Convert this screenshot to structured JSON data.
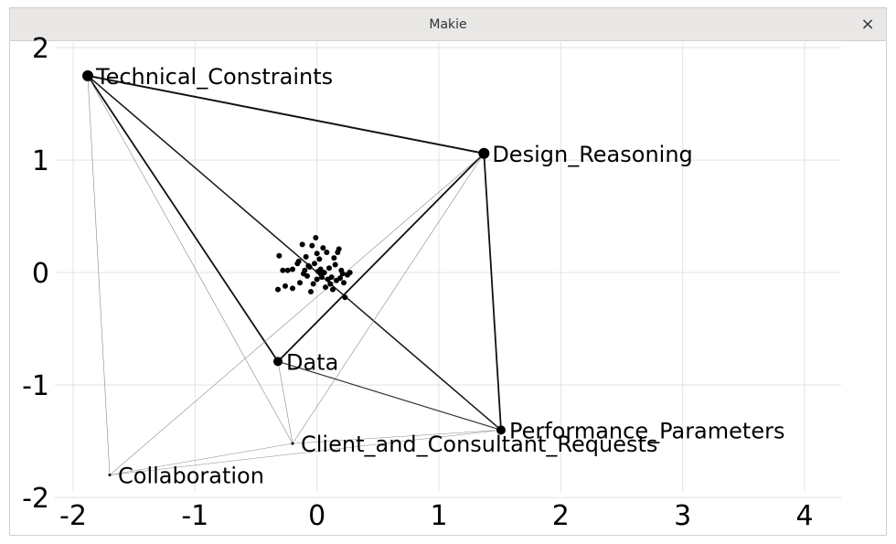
{
  "window": {
    "title": "Makie",
    "close_glyph": "×"
  },
  "chart_data": {
    "type": "scatter",
    "subtype": "network-graph",
    "xlim": [
      -2.15,
      4.3
    ],
    "ylim": [
      -1.95,
      2.05
    ],
    "xticks": [
      "-2",
      "-1",
      "0",
      "1",
      "2",
      "3",
      "4"
    ],
    "xtick_values": [
      -2,
      -1,
      0,
      1,
      2,
      3,
      4
    ],
    "yticks": [
      "2",
      "1",
      "0",
      "-1",
      "-2"
    ],
    "ytick_values": [
      2,
      1,
      0,
      -1,
      -2
    ],
    "grid": true,
    "nodes": [
      {
        "label": "Technical_Constraints",
        "x": -1.88,
        "y": 1.75,
        "size": 6
      },
      {
        "label": "Design_Reasoning",
        "x": 1.37,
        "y": 1.06,
        "size": 6
      },
      {
        "label": "Data",
        "x": -0.32,
        "y": -0.79,
        "size": 5
      },
      {
        "label": "Performance_Parameters",
        "x": 1.51,
        "y": -1.4,
        "size": 5
      },
      {
        "label": "Client_and_Consultant_Requests",
        "x": -0.2,
        "y": -1.52,
        "size": 1.5
      },
      {
        "label": "Collaboration",
        "x": -1.7,
        "y": -1.8,
        "size": 1.5
      }
    ],
    "edges": [
      {
        "from": 0,
        "to": 1,
        "weight": 2
      },
      {
        "from": 0,
        "to": 2,
        "weight": 1.8
      },
      {
        "from": 0,
        "to": 3,
        "weight": 1.5
      },
      {
        "from": 0,
        "to": 4,
        "weight": 0.6
      },
      {
        "from": 0,
        "to": 5,
        "weight": 0.6
      },
      {
        "from": 1,
        "to": 2,
        "weight": 1.8
      },
      {
        "from": 1,
        "to": 3,
        "weight": 1.8
      },
      {
        "from": 1,
        "to": 4,
        "weight": 0.6
      },
      {
        "from": 1,
        "to": 5,
        "weight": 0.6
      },
      {
        "from": 2,
        "to": 3,
        "weight": 1.2
      },
      {
        "from": 2,
        "to": 4,
        "weight": 0.6
      },
      {
        "from": 3,
        "to": 4,
        "weight": 0.5
      },
      {
        "from": 3,
        "to": 5,
        "weight": 0.5
      },
      {
        "from": 4,
        "to": 5,
        "weight": 0.5
      }
    ],
    "cluster_points": [
      [
        -0.31,
        0.15
      ],
      [
        -0.28,
        0.02
      ],
      [
        -0.32,
        -0.15
      ],
      [
        -0.26,
        -0.12
      ],
      [
        -0.2,
        0.03
      ],
      [
        -0.15,
        0.1
      ],
      [
        -0.14,
        -0.09
      ],
      [
        -0.12,
        0.25
      ],
      [
        -0.1,
        0.02
      ],
      [
        -0.08,
        -0.03
      ],
      [
        -0.06,
        0.05
      ],
      [
        -0.05,
        -0.17
      ],
      [
        -0.04,
        0.24
      ],
      [
        -0.02,
        0.08
      ],
      [
        -0.01,
        0.31
      ],
      [
        0.0,
        -0.06
      ],
      [
        0.01,
        0.01
      ],
      [
        0.02,
        0.12
      ],
      [
        0.03,
        0.03
      ],
      [
        0.04,
        -0.04
      ],
      [
        0.05,
        0.22
      ],
      [
        0.06,
        0.0
      ],
      [
        0.07,
        -0.13
      ],
      [
        0.08,
        0.18
      ],
      [
        0.1,
        0.04
      ],
      [
        0.12,
        -0.04
      ],
      [
        0.13,
        -0.15
      ],
      [
        0.15,
        0.07
      ],
      [
        0.16,
        -0.07
      ],
      [
        0.17,
        0.18
      ],
      [
        0.18,
        0.21
      ],
      [
        0.19,
        -0.05
      ],
      [
        0.2,
        0.02
      ],
      [
        0.21,
        -0.01
      ],
      [
        0.22,
        -0.09
      ],
      [
        0.23,
        -0.22
      ],
      [
        0.25,
        -0.02
      ],
      [
        0.27,
        0.0
      ],
      [
        -0.2,
        -0.14
      ],
      [
        -0.16,
        0.08
      ],
      [
        -0.11,
        -0.01
      ],
      [
        -0.09,
        0.14
      ],
      [
        -0.03,
        -0.1
      ],
      [
        0.0,
        0.17
      ],
      [
        0.03,
        -0.01
      ],
      [
        0.09,
        -0.06
      ],
      [
        0.14,
        0.13
      ],
      [
        -0.24,
        0.02
      ],
      [
        -0.07,
        0.06
      ],
      [
        0.11,
        -0.1
      ]
    ]
  }
}
